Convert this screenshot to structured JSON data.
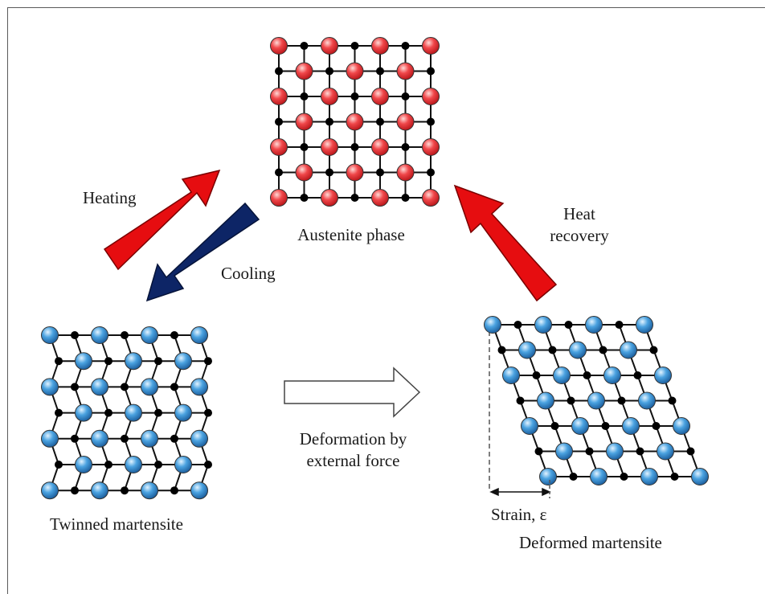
{
  "labels": {
    "austenite": "Austenite phase",
    "heating": "Heating",
    "cooling": "Cooling",
    "heat_recovery_line1": "Heat",
    "heat_recovery_line2": "recovery",
    "twinned": "Twinned martensite",
    "deformation_line1": "Deformation by",
    "deformation_line2": "external force",
    "strain": "Strain, ε",
    "deformed": "Deformed martensite"
  },
  "colors": {
    "austenite_atom": "#e8383a",
    "martensite_atom": "#3a92d6",
    "small_atom": "#000000",
    "heating_arrow": "#e60d10",
    "cooling_arrow": "#0d2566",
    "heat_recovery_arrow": "#e60d10",
    "bond": "#111111"
  }
}
